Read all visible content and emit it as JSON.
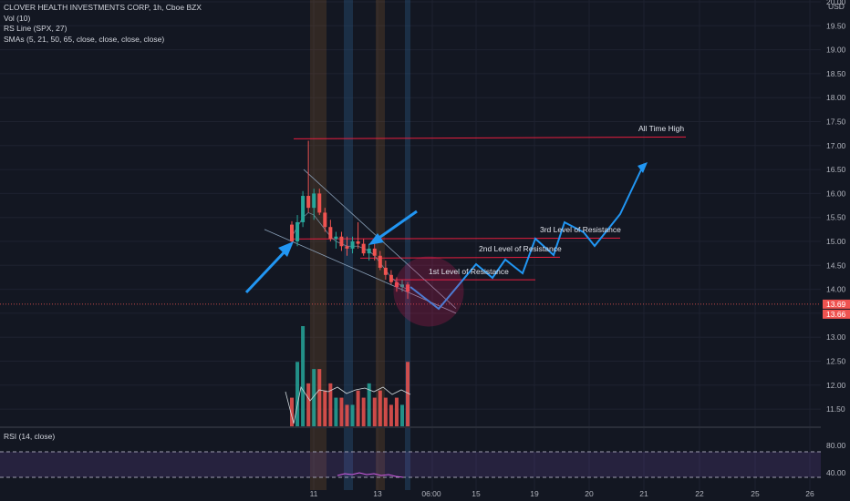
{
  "legend": {
    "title": "CLOVER HEALTH INVESTMENTS CORP, 1h, Cboe BZX",
    "vol": "Vol (10)",
    "rs": "RS Line (SPX, 27)",
    "smas": "SMAs (5, 21, 50, 65, close, close, close, close)"
  },
  "rsi_label": "RSI (14, close)",
  "currency": "USD",
  "colors": {
    "up": "#26a69a",
    "down": "#ef5350",
    "arrow": "#2196f3",
    "resistance": "#e91e3f",
    "sma": "#8aa0b8"
  },
  "chart_data": {
    "type": "candlestick",
    "price_ticks": [
      "20.00",
      "19.50",
      "19.00",
      "18.50",
      "18.00",
      "17.50",
      "17.00",
      "16.50",
      "16.00",
      "15.50",
      "15.00",
      "14.50",
      "14.00",
      "13.50",
      "13.00",
      "12.50",
      "12.00",
      "11.50"
    ],
    "rsi_ticks": [
      "80.00",
      "40.00"
    ],
    "x_ticks": [
      "11",
      "13",
      "06:00",
      "15",
      "19",
      "20",
      "21",
      "22",
      "25",
      "26"
    ],
    "current_price": "13.69",
    "price_label_2": "13.66",
    "annotations": [
      "All Time High",
      "3rd Level of Resistance",
      "2nd Level of Resistance",
      "1st Level of Resistance"
    ],
    "candles": [
      {
        "o": 15.35,
        "h": 15.42,
        "l": 14.92,
        "c": 15.0
      },
      {
        "o": 15.0,
        "h": 15.55,
        "l": 14.9,
        "c": 15.4
      },
      {
        "o": 15.4,
        "h": 16.05,
        "l": 15.3,
        "c": 15.95
      },
      {
        "o": 15.95,
        "h": 17.1,
        "l": 15.6,
        "c": 15.7
      },
      {
        "o": 15.7,
        "h": 16.1,
        "l": 15.45,
        "c": 16.0
      },
      {
        "o": 16.0,
        "h": 16.1,
        "l": 15.55,
        "c": 15.6
      },
      {
        "o": 15.6,
        "h": 15.7,
        "l": 15.2,
        "c": 15.3
      },
      {
        "o": 15.3,
        "h": 15.45,
        "l": 15.0,
        "c": 15.05
      },
      {
        "o": 15.05,
        "h": 15.2,
        "l": 14.85,
        "c": 15.1
      },
      {
        "o": 15.1,
        "h": 15.2,
        "l": 14.8,
        "c": 14.9
      },
      {
        "o": 14.9,
        "h": 15.1,
        "l": 14.7,
        "c": 14.85
      },
      {
        "o": 14.85,
        "h": 15.1,
        "l": 14.75,
        "c": 15.0
      },
      {
        "o": 15.0,
        "h": 15.4,
        "l": 14.85,
        "c": 14.95
      },
      {
        "o": 14.95,
        "h": 15.05,
        "l": 14.7,
        "c": 14.75
      },
      {
        "o": 14.75,
        "h": 14.95,
        "l": 14.6,
        "c": 14.85
      },
      {
        "o": 14.85,
        "h": 14.95,
        "l": 14.6,
        "c": 14.7
      },
      {
        "o": 14.7,
        "h": 14.8,
        "l": 14.4,
        "c": 14.45
      },
      {
        "o": 14.45,
        "h": 14.6,
        "l": 14.2,
        "c": 14.3
      },
      {
        "o": 14.3,
        "h": 14.4,
        "l": 14.1,
        "c": 14.15
      },
      {
        "o": 14.15,
        "h": 14.25,
        "l": 13.95,
        "c": 14.05
      },
      {
        "o": 14.05,
        "h": 14.2,
        "l": 13.95,
        "c": 14.1
      },
      {
        "o": 14.1,
        "h": 14.15,
        "l": 13.8,
        "c": 13.95
      }
    ],
    "volume": [
      4,
      9,
      14,
      6,
      8,
      8,
      5,
      6,
      4,
      4,
      3,
      3,
      5,
      4,
      6,
      4,
      5,
      4,
      3,
      4,
      3,
      9
    ],
    "projection": [
      [
        14.05,
        0
      ],
      [
        13.55,
        1
      ],
      [
        14.45,
        2
      ],
      [
        14.15,
        3
      ],
      [
        14.95,
        4
      ],
      [
        14.55,
        5
      ],
      [
        15.15,
        6
      ],
      [
        14.85,
        7
      ],
      [
        15.35,
        8
      ],
      [
        15.05,
        9
      ],
      [
        16.65,
        10
      ]
    ]
  }
}
